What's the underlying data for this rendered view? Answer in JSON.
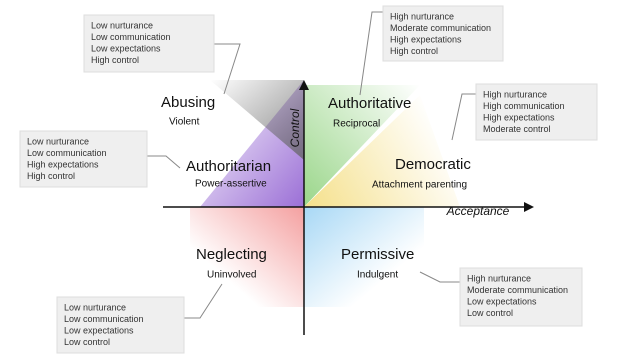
{
  "axes": {
    "y_label": "Control",
    "x_label": "Acceptance"
  },
  "styles": [
    {
      "name": "Abusing",
      "description": "Violent",
      "traits": [
        "Low nurturance",
        "Low communication",
        "Low expectations",
        "High control"
      ]
    },
    {
      "name": "Authoritative",
      "description": "Reciprocal",
      "traits": [
        "High nurturance",
        "Moderate communication",
        "High expectations",
        "High control"
      ]
    },
    {
      "name": "Democratic",
      "description": "Attachment parenting",
      "traits": [
        "High nurturance",
        "High communication",
        "High expectations",
        "Moderate control"
      ]
    },
    {
      "name": "Authoritarian",
      "description": "Power-assertive",
      "traits": [
        "Low nurturance",
        "Low communication",
        "High expectations",
        "High control"
      ]
    },
    {
      "name": "Neglecting",
      "description": "Uninvolved",
      "traits": [
        "Low nurturance",
        "Low communication",
        "Low expectations",
        "Low control"
      ]
    },
    {
      "name": "Permissive",
      "description": "Indulgent",
      "traits": [
        "High nurturance",
        "Moderate communication",
        "Low expectations",
        "Low control"
      ]
    }
  ]
}
